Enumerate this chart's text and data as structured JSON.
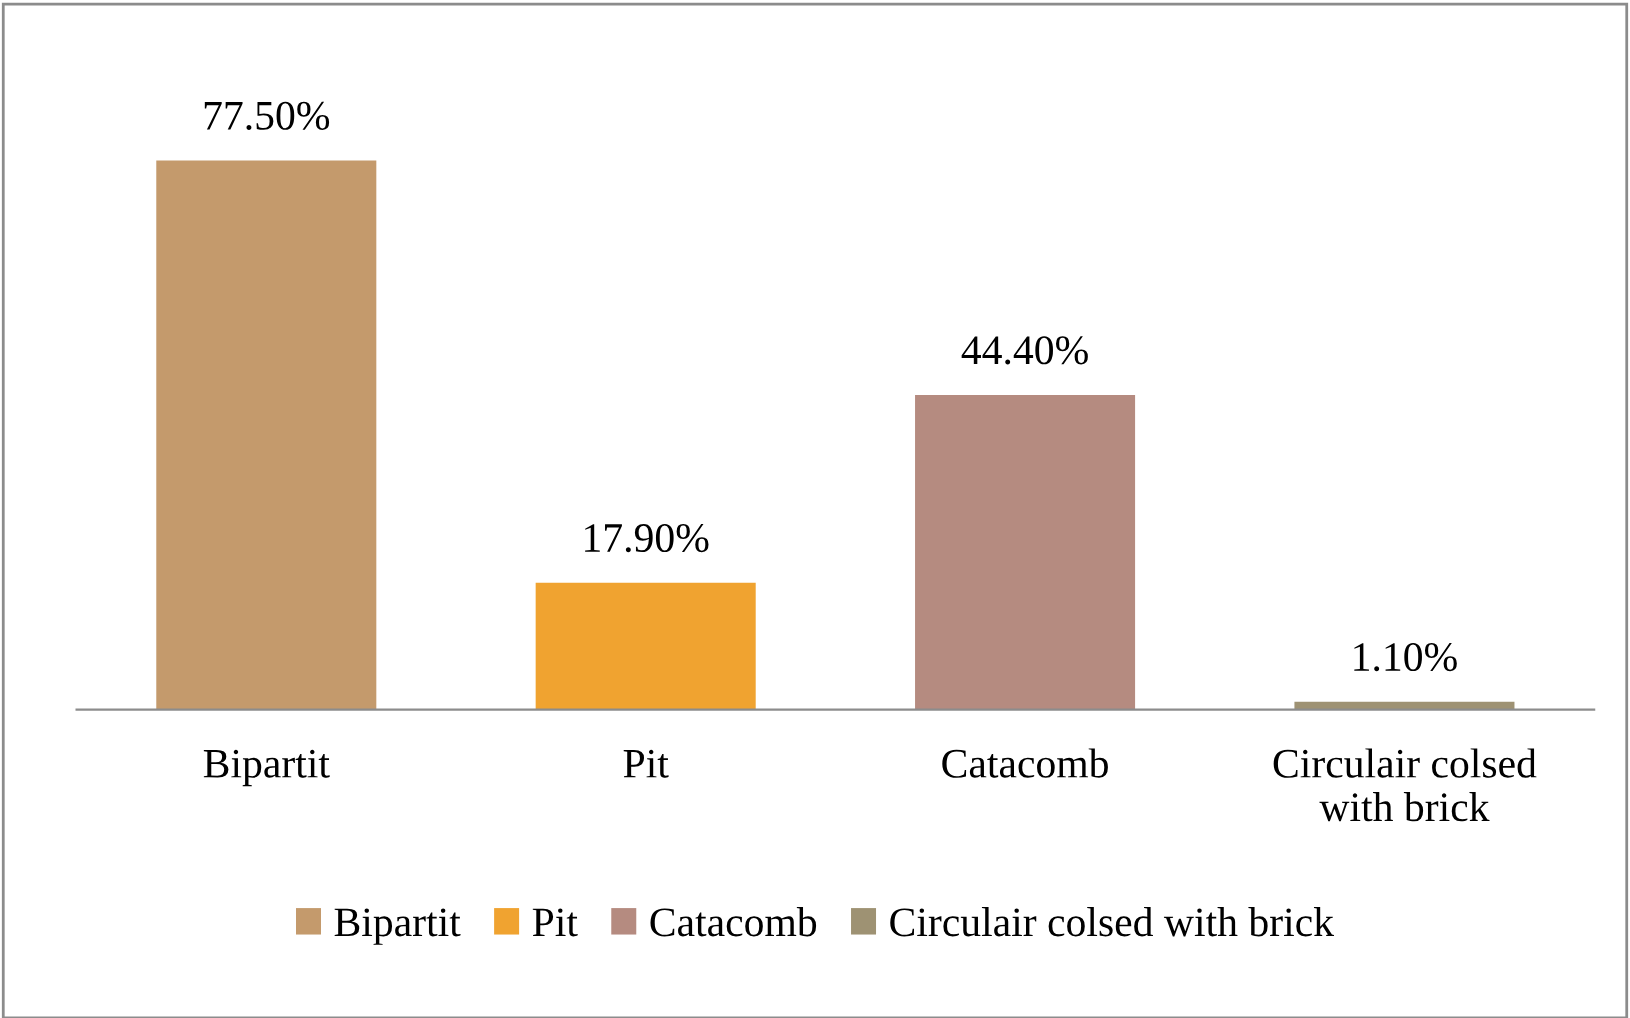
{
  "chart_data": {
    "type": "bar",
    "categories": [
      "Bipartit",
      "Pit",
      "Catacomb",
      "Circulair colsed with brick"
    ],
    "series": [
      {
        "name": "Bipartit",
        "color": "#c49a6c",
        "values": [
          77.5,
          null,
          null,
          null
        ],
        "value_labels": [
          "77.50%",
          null,
          null,
          null
        ]
      },
      {
        "name": "Pit",
        "color": "#f0a330",
        "values": [
          null,
          17.9,
          null,
          null
        ],
        "value_labels": [
          null,
          "17.90%",
          null,
          null
        ]
      },
      {
        "name": "Catacomb",
        "color": "#b58b80",
        "values": [
          null,
          null,
          44.4,
          null
        ],
        "value_labels": [
          null,
          null,
          "44.40%",
          null
        ]
      },
      {
        "name": "Circulair colsed with brick",
        "color": "#9e9273",
        "values": [
          null,
          null,
          null,
          1.1
        ],
        "value_labels": [
          null,
          null,
          null,
          "1.10%"
        ]
      }
    ],
    "legend": "bottom"
  }
}
